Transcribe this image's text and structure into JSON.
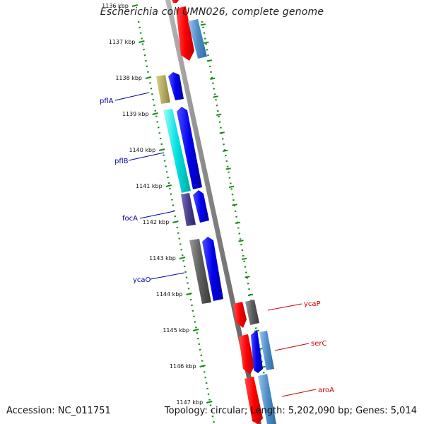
{
  "title": "Escherichia coli UMN026, complete genome",
  "accession": "Accession: NC_011751",
  "summary": "Topology: circular; Length: 5,202,090 bp; Genes: 5,014",
  "ticks": [
    "1136 kbp",
    "1137 kbp",
    "1138 kbp",
    "1139 kbp",
    "1140 kbp",
    "1141 kbp",
    "1142 kbp",
    "1143 kbp",
    "1144 kbp",
    "1145 kbp",
    "1146 kbp",
    "1147 kbp"
  ],
  "left_genes": [
    {
      "name": "pflA",
      "color": "#0000aa"
    },
    {
      "name": "pflB",
      "color": "#0000aa"
    },
    {
      "name": "focA",
      "color": "#0000aa"
    },
    {
      "name": "ycaO",
      "color": "#0000aa"
    }
  ],
  "right_genes": [
    {
      "name": "ycaP",
      "color": "#cc0000"
    },
    {
      "name": "serC",
      "color": "#cc0000"
    },
    {
      "name": "aroA",
      "color": "#cc0000"
    }
  ],
  "colors": {
    "backbone": "#8a8a8a",
    "dots": "#1a8a1a",
    "cds_forward": "#0000ee",
    "cds_reverse": "#ee0000",
    "steelblue": "#4f8fc9",
    "olive": "#b4ac62",
    "cyan": "#00e0e0",
    "slate": "#4a3f8f",
    "gray": "#5c5c5c"
  }
}
